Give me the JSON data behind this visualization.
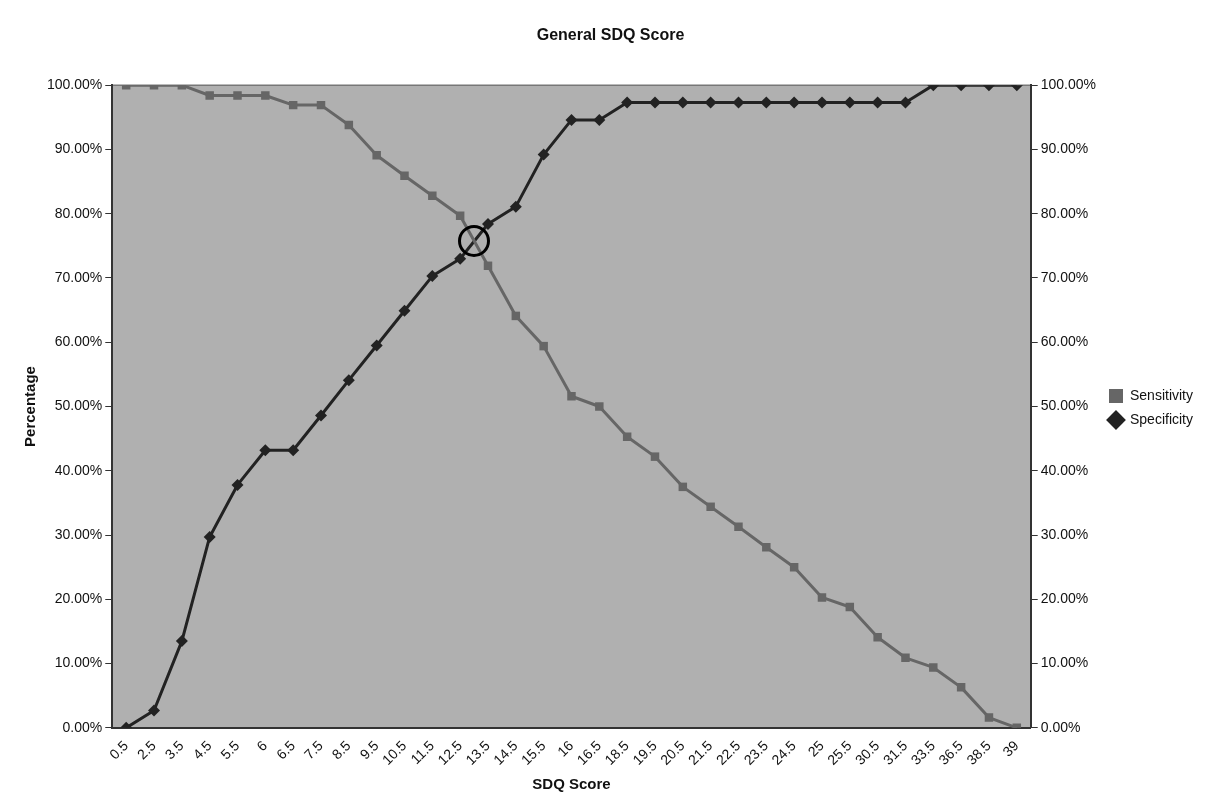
{
  "chart_data": {
    "type": "line",
    "title": "General SDQ Score",
    "xlabel": "SDQ Score",
    "ylabel": "Percentage",
    "categories": [
      "0.5",
      "2.5",
      "3.5",
      "4.5",
      "5.5",
      "6",
      "6.5",
      "7.5",
      "8.5",
      "9.5",
      "10.5",
      "11.5",
      "12.5",
      "13.5",
      "14.5",
      "15.5",
      "16",
      "16.5",
      "18.5",
      "19.5",
      "20.5",
      "21.5",
      "22.5",
      "23.5",
      "24.5",
      "25",
      "25.5",
      "30.5",
      "31.5",
      "33.5",
      "36.5",
      "38.5",
      "39"
    ],
    "series": [
      {
        "name": "Sensitivity",
        "color": "#666666",
        "marker": "square",
        "values": [
          100,
          100,
          100,
          98.4,
          98.4,
          98.4,
          96.9,
          96.9,
          93.8,
          89.1,
          85.9,
          82.8,
          79.7,
          71.9,
          64.1,
          59.4,
          51.6,
          50,
          45.3,
          42.2,
          37.5,
          34.4,
          31.3,
          28.1,
          25,
          20.3,
          18.8,
          14.1,
          10.9,
          9.4,
          6.3,
          1.6,
          0
        ]
      },
      {
        "name": "Specificity",
        "color": "#222222",
        "marker": "diamond",
        "values": [
          0,
          2.7,
          13.5,
          29.7,
          37.8,
          43.2,
          43.2,
          48.6,
          54.1,
          59.5,
          64.9,
          70.3,
          73.0,
          78.4,
          81.1,
          89.2,
          94.6,
          94.6,
          97.3,
          97.3,
          97.3,
          97.3,
          97.3,
          97.3,
          97.3,
          97.3,
          97.3,
          97.3,
          97.3,
          100,
          100,
          100,
          100
        ]
      }
    ],
    "ylim": [
      0,
      100
    ],
    "yticks": [
      {
        "value": 0,
        "label": "0.00%"
      },
      {
        "value": 10,
        "label": "10.00%"
      },
      {
        "value": 20,
        "label": "20.00%"
      },
      {
        "value": 30,
        "label": "30.00%"
      },
      {
        "value": 40,
        "label": "40.00%"
      },
      {
        "value": 50,
        "label": "50.00%"
      },
      {
        "value": 60,
        "label": "60.00%"
      },
      {
        "value": 70,
        "label": "70.00%"
      },
      {
        "value": 80,
        "label": "80.00%"
      },
      {
        "value": 90,
        "label": "90.00%"
      },
      {
        "value": 100,
        "label": "100.00%"
      }
    ],
    "y2lim": [
      0,
      100
    ],
    "y2ticks": [
      {
        "value": 0,
        "label": "0.00%"
      },
      {
        "value": 10,
        "label": "10.00%"
      },
      {
        "value": 20,
        "label": "20.00%"
      },
      {
        "value": 30,
        "label": "30.00%"
      },
      {
        "value": 40,
        "label": "40.00%"
      },
      {
        "value": 50,
        "label": "50.00%"
      },
      {
        "value": 60,
        "label": "60.00%"
      },
      {
        "value": 70,
        "label": "70.00%"
      },
      {
        "value": 80,
        "label": "80.00%"
      },
      {
        "value": 90,
        "label": "90.00%"
      },
      {
        "value": 100,
        "label": "100.00%"
      }
    ],
    "grid": false,
    "legend": "right",
    "line_style": "solid"
  }
}
